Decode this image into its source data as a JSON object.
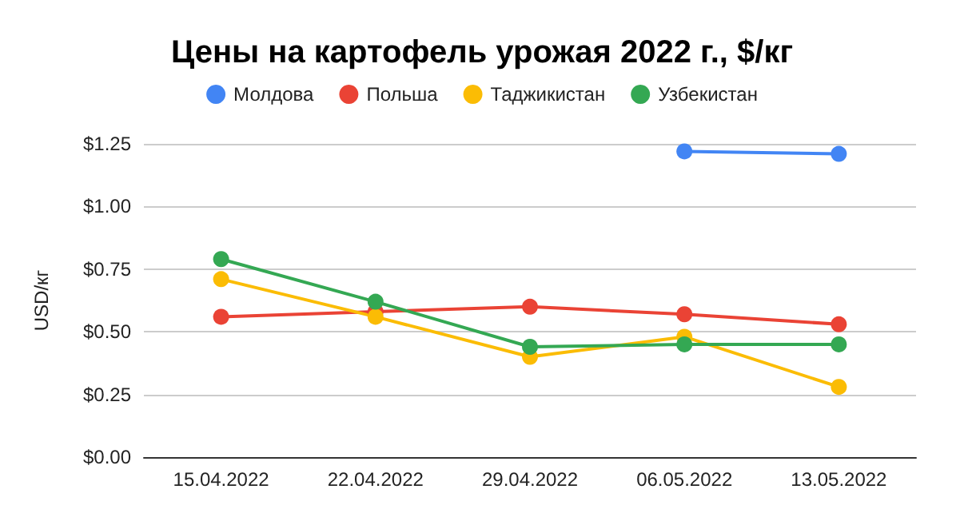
{
  "chart_data": {
    "type": "line",
    "title": "Цены на картофель урожая 2022 г., $/кг",
    "ylabel": "USD/кг",
    "categories": [
      "15.04.2022",
      "22.04.2022",
      "29.04.2022",
      "06.05.2022",
      "13.05.2022"
    ],
    "series": [
      {
        "name": "Молдова",
        "color": "#4285f4",
        "values": [
          null,
          null,
          null,
          1.22,
          1.21
        ]
      },
      {
        "name": "Польша",
        "color": "#ea4335",
        "values": [
          0.56,
          0.58,
          0.6,
          0.57,
          0.53
        ]
      },
      {
        "name": "Таджикистан",
        "color": "#fbbc04",
        "values": [
          0.71,
          0.56,
          0.4,
          0.48,
          0.28
        ]
      },
      {
        "name": "Узбекистан",
        "color": "#34a853",
        "values": [
          0.79,
          0.62,
          0.44,
          0.45,
          0.45
        ]
      }
    ],
    "ylim": [
      0,
      1.25
    ],
    "yticks": [
      {
        "value": 0,
        "label": "$0.00"
      },
      {
        "value": 0.25,
        "label": "$0.25"
      },
      {
        "value": 0.5,
        "label": "$0.50"
      },
      {
        "value": 0.75,
        "label": "$0.75"
      },
      {
        "value": 1,
        "label": "$1.00"
      },
      {
        "value": 1.25,
        "label": "$1.25"
      }
    ],
    "grid": "y",
    "legend": "top",
    "marker": "circle",
    "line_style": "solid"
  }
}
